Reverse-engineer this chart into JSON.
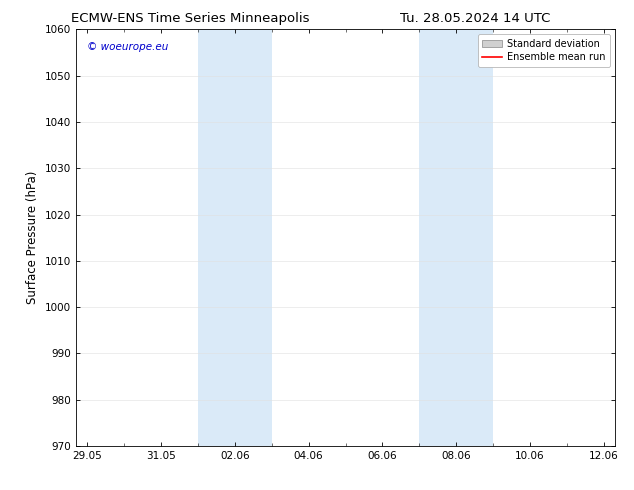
{
  "title_left": "ECMW-ENS Time Series Minneapolis",
  "title_right": "Tu. 28.05.2024 14 UTC",
  "ylabel": "Surface Pressure (hPa)",
  "ylim": [
    970,
    1060
  ],
  "yticks": [
    970,
    980,
    990,
    1000,
    1010,
    1020,
    1030,
    1040,
    1050,
    1060
  ],
  "xtick_labels": [
    "29.05",
    "31.05",
    "02.06",
    "04.06",
    "06.06",
    "08.06",
    "10.06",
    "12.06"
  ],
  "xtick_positions": [
    0,
    2,
    4,
    6,
    8,
    10,
    12,
    14
  ],
  "xlim": [
    -0.3,
    14.3
  ],
  "shaded_regions": [
    {
      "x_start": 3.0,
      "x_end": 5.0
    },
    {
      "x_start": 9.0,
      "x_end": 11.0
    }
  ],
  "shaded_color": "#daeaf8",
  "watermark_text": "© woeurope.eu",
  "watermark_color": "#0000cc",
  "legend_items": [
    {
      "label": "Standard deviation",
      "color": "#d0d0d0",
      "type": "patch"
    },
    {
      "label": "Ensemble mean run",
      "color": "#ff0000",
      "type": "line"
    }
  ],
  "background_color": "#ffffff",
  "grid_color": "#e0e0e0",
  "title_fontsize": 9.5,
  "tick_fontsize": 7.5,
  "ylabel_fontsize": 8.5,
  "watermark_fontsize": 7.5,
  "legend_fontsize": 7
}
